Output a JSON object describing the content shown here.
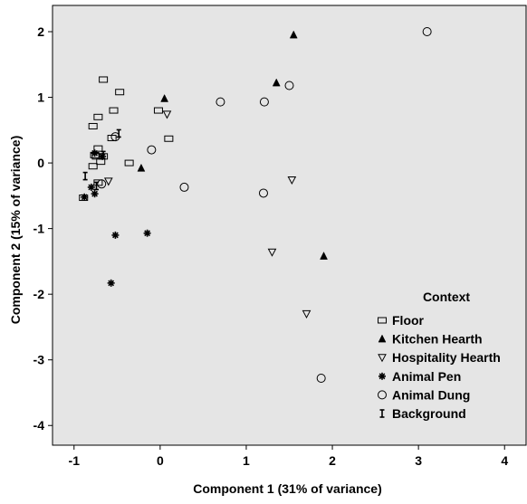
{
  "chart_data": {
    "type": "scatter",
    "xlabel": "Component 1 (31% of variance)",
    "ylabel": "Component 2 (15% of variance)",
    "xlim": [
      -1.25,
      4.25
    ],
    "ylim": [
      -4.3,
      2.4
    ],
    "xticks": [
      -1,
      0,
      1,
      2,
      3,
      4
    ],
    "yticks": [
      -4,
      -3,
      -2,
      -1,
      0,
      1,
      2
    ],
    "grid": false,
    "background": "#e5e5e5",
    "legend": {
      "title": "Context",
      "placement": "bottom-right"
    },
    "series": [
      {
        "name": "Floor",
        "marker": "square",
        "x": [
          -0.66,
          -0.47,
          -0.72,
          -0.54,
          -0.78,
          -0.56,
          -0.72,
          -0.76,
          -0.69,
          -0.36,
          -0.02,
          0.1,
          -0.66,
          -0.74,
          -0.78,
          -0.72,
          -0.89
        ],
        "y": [
          1.27,
          1.08,
          0.7,
          0.8,
          0.56,
          0.38,
          0.22,
          0.12,
          0.02,
          0.0,
          0.8,
          0.37,
          0.1,
          0.1,
          -0.05,
          -0.3,
          -0.53
        ]
      },
      {
        "name": "Kitchen Hearth",
        "marker": "triangle-up",
        "x": [
          1.55,
          1.35,
          0.05,
          -0.22,
          1.9
        ],
        "y": [
          1.95,
          1.22,
          0.98,
          -0.08,
          -1.42
        ]
      },
      {
        "name": "Hospitality Hearth",
        "marker": "triangle-down",
        "x": [
          0.08,
          1.53,
          -0.6,
          1.3,
          1.7
        ],
        "y": [
          0.74,
          -0.26,
          -0.28,
          -1.36,
          -2.3
        ]
      },
      {
        "name": "Animal Pen",
        "marker": "asterisk",
        "x": [
          -0.76,
          -0.67,
          -0.8,
          -0.76,
          -0.88,
          -0.52,
          -0.15,
          -0.57
        ],
        "y": [
          0.15,
          0.1,
          -0.37,
          -0.47,
          -0.52,
          -1.1,
          -1.07,
          -1.83
        ]
      },
      {
        "name": "Animal Dung",
        "marker": "circle",
        "x": [
          3.1,
          0.7,
          1.21,
          1.5,
          -0.52,
          -0.1,
          0.28,
          1.2,
          -0.68,
          1.87
        ],
        "y": [
          2.0,
          0.93,
          0.93,
          1.18,
          0.4,
          0.2,
          -0.37,
          -0.46,
          -0.32,
          -3.28
        ]
      },
      {
        "name": "Background",
        "marker": "i-bar",
        "x": [
          -0.48,
          -0.66,
          -0.87,
          -0.74
        ],
        "y": [
          0.45,
          0.12,
          -0.2,
          -0.35
        ]
      }
    ]
  }
}
